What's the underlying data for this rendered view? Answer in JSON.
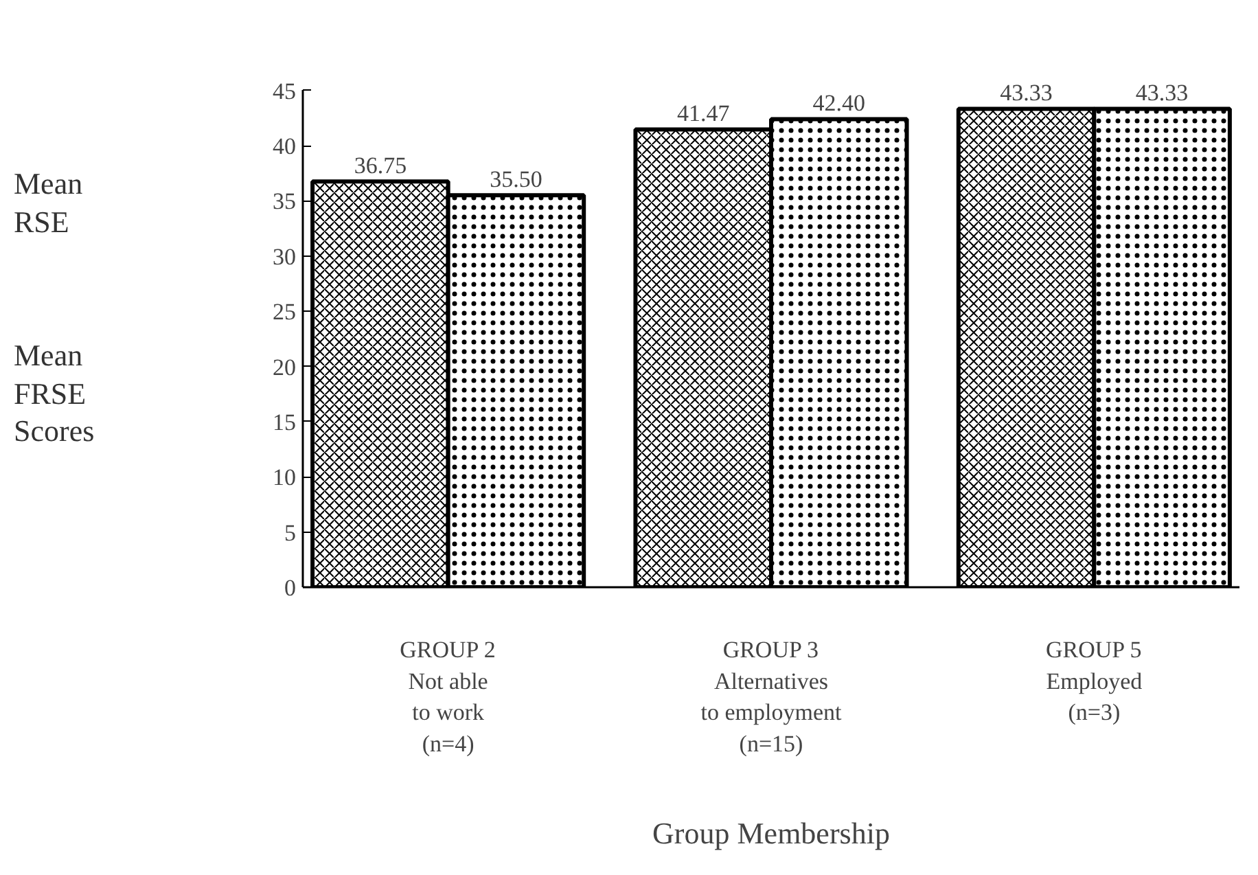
{
  "chart_data": {
    "type": "bar",
    "xlabel": "Group Membership",
    "categories": [
      "GROUP 2\nNot able\nto work\n(n=4)",
      "GROUP 3\nAlternatives\nto employment\n(n=15)",
      "GROUP 5\nEmployed\n(n=3)"
    ],
    "series": [
      {
        "color": "#000000",
        "values": [
          36.75,
          41.47,
          43.33
        ]
      },
      {
        "color": "#000000",
        "values": [
          35.5,
          42.4,
          43.33
        ]
      }
    ],
    "value_labels": [
      [
        "36.75",
        "41.47",
        "43.33"
      ],
      [
        "35.50",
        "42.40",
        "43.33"
      ]
    ],
    "annotations": [
      "Mean\nRSE",
      "Mean\nFRSE\nScores"
    ],
    "ylim": [
      0,
      45
    ],
    "yticks": [
      0,
      5,
      10,
      15,
      20,
      25,
      30,
      35,
      40,
      45
    ],
    "grid": false
  }
}
